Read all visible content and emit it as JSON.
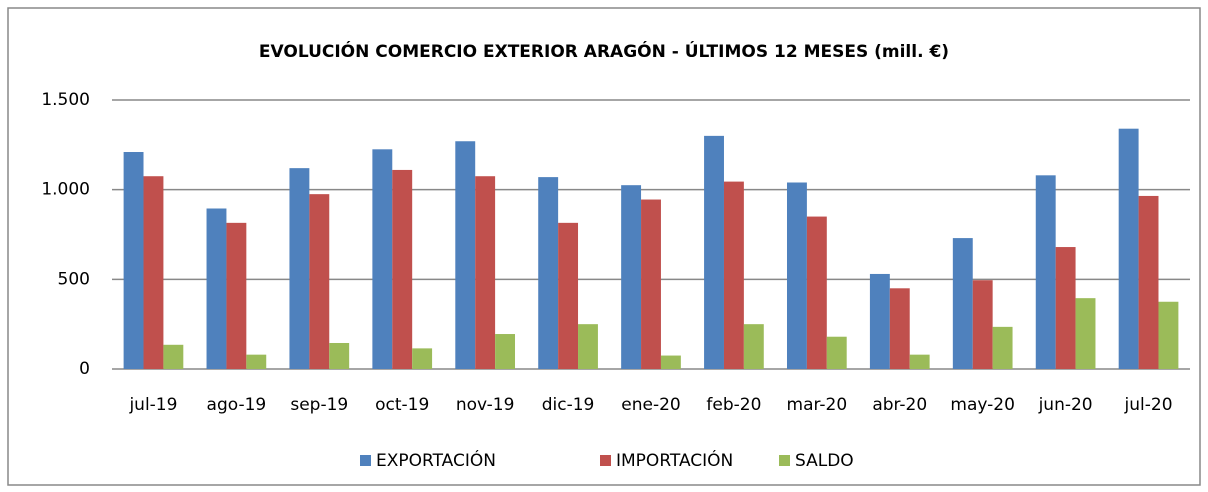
{
  "chart_data": {
    "type": "bar",
    "title": "EVOLUCIÓN COMERCIO EXTERIOR ARAGÓN - ÚLTIMOS 12 MESES (mill. €)",
    "categories": [
      "jul-19",
      "ago-19",
      "sep-19",
      "oct-19",
      "nov-19",
      "dic-19",
      "ene-20",
      "feb-20",
      "mar-20",
      "abr-20",
      "may-20",
      "jun-20",
      "jul-20"
    ],
    "series": [
      {
        "name": "EXPORTACIÓN",
        "color": "#4f81bd",
        "values": [
          1210,
          895,
          1120,
          1225,
          1270,
          1070,
          1025,
          1300,
          1040,
          530,
          730,
          1080,
          1340
        ]
      },
      {
        "name": "IMPORTACIÓN",
        "color": "#c0504d",
        "values": [
          1075,
          815,
          975,
          1110,
          1075,
          815,
          945,
          1045,
          850,
          450,
          495,
          680,
          965
        ]
      },
      {
        "name": "SALDO",
        "color": "#9bbb59",
        "values": [
          135,
          80,
          145,
          115,
          195,
          250,
          75,
          250,
          180,
          80,
          235,
          395,
          375
        ]
      }
    ],
    "ylim": [
      0,
      1500
    ],
    "yticks": [
      0,
      500,
      {
        "value": 1000,
        "label": "1.000"
      },
      {
        "value": 1500,
        "label": "1.500"
      }
    ],
    "grid": true,
    "legend": "bottom"
  }
}
